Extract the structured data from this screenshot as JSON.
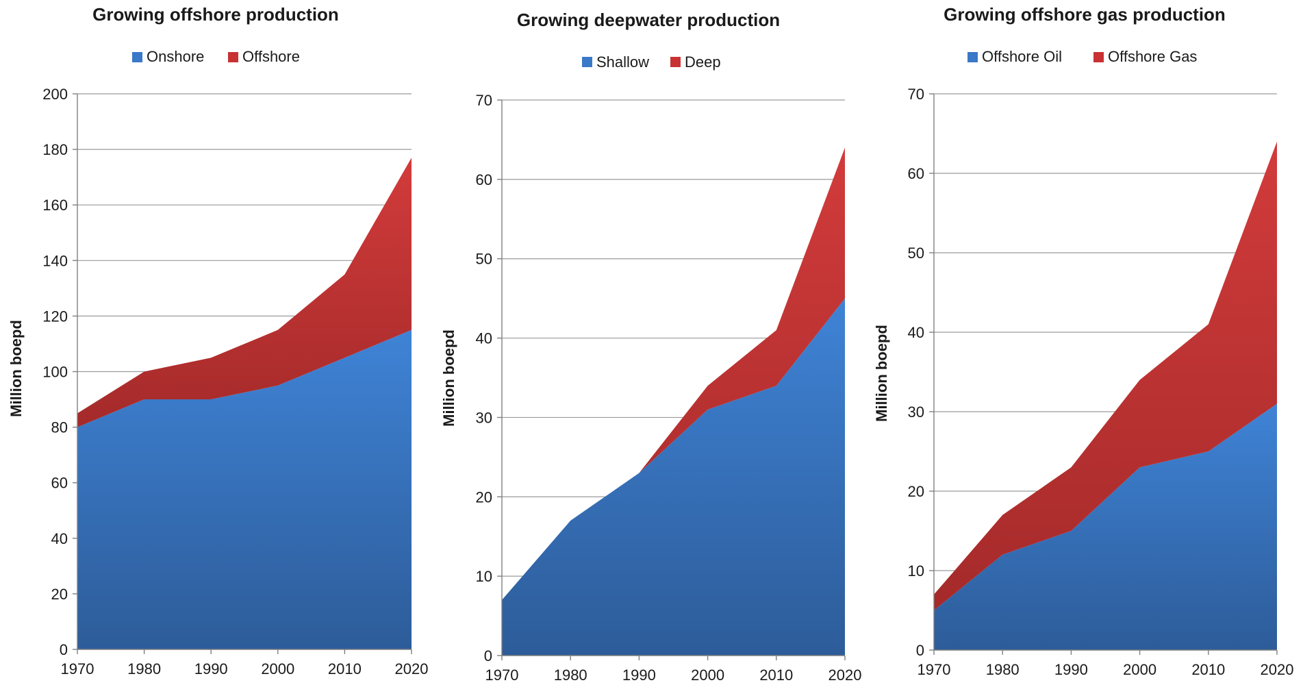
{
  "chart_data": [
    {
      "type": "area",
      "stacked": true,
      "title": "Growing offshore production",
      "ylabel": "Million boepd",
      "xlabel": "",
      "x": [
        1970,
        1980,
        1990,
        2000,
        2010,
        2020
      ],
      "ylim": [
        0,
        200
      ],
      "yticks": [
        0,
        20,
        40,
        60,
        80,
        100,
        120,
        140,
        160,
        180,
        200
      ],
      "grid": true,
      "legend_position": "top-center",
      "series": [
        {
          "name": "Onshore",
          "values": [
            80,
            90,
            90,
            95,
            105,
            115
          ],
          "color": "#3a78c8"
        },
        {
          "name": "Offshore",
          "values": [
            5,
            10,
            15,
            20,
            30,
            62
          ],
          "color": "#c83232"
        }
      ]
    },
    {
      "type": "area",
      "stacked": true,
      "title": "Growing deepwater production",
      "ylabel": "Million boepd",
      "xlabel": "",
      "x": [
        1970,
        1980,
        1990,
        2000,
        2010,
        2020
      ],
      "ylim": [
        0,
        70
      ],
      "yticks": [
        0,
        10,
        20,
        30,
        40,
        50,
        60,
        70
      ],
      "grid": true,
      "legend_position": "top-center",
      "series": [
        {
          "name": "Shallow",
          "values": [
            7,
            17,
            23,
            31,
            34,
            45
          ],
          "color": "#3a78c8"
        },
        {
          "name": "Deep",
          "values": [
            0,
            0,
            0,
            3,
            7,
            19
          ],
          "color": "#c83232"
        }
      ]
    },
    {
      "type": "area",
      "stacked": true,
      "title": "Growing offshore gas production",
      "ylabel": "Million boepd",
      "xlabel": "",
      "x": [
        1970,
        1980,
        1990,
        2000,
        2010,
        2020
      ],
      "ylim": [
        0,
        70
      ],
      "yticks": [
        0,
        10,
        20,
        30,
        40,
        50,
        60,
        70
      ],
      "grid": true,
      "legend_position": "top-center",
      "series": [
        {
          "name": "Offshore Oil",
          "values": [
            5,
            12,
            15,
            23,
            25,
            31
          ],
          "color": "#3a78c8"
        },
        {
          "name": "Offshore Gas",
          "values": [
            2,
            5,
            8,
            11,
            16,
            33
          ],
          "color": "#c83232"
        }
      ]
    }
  ]
}
